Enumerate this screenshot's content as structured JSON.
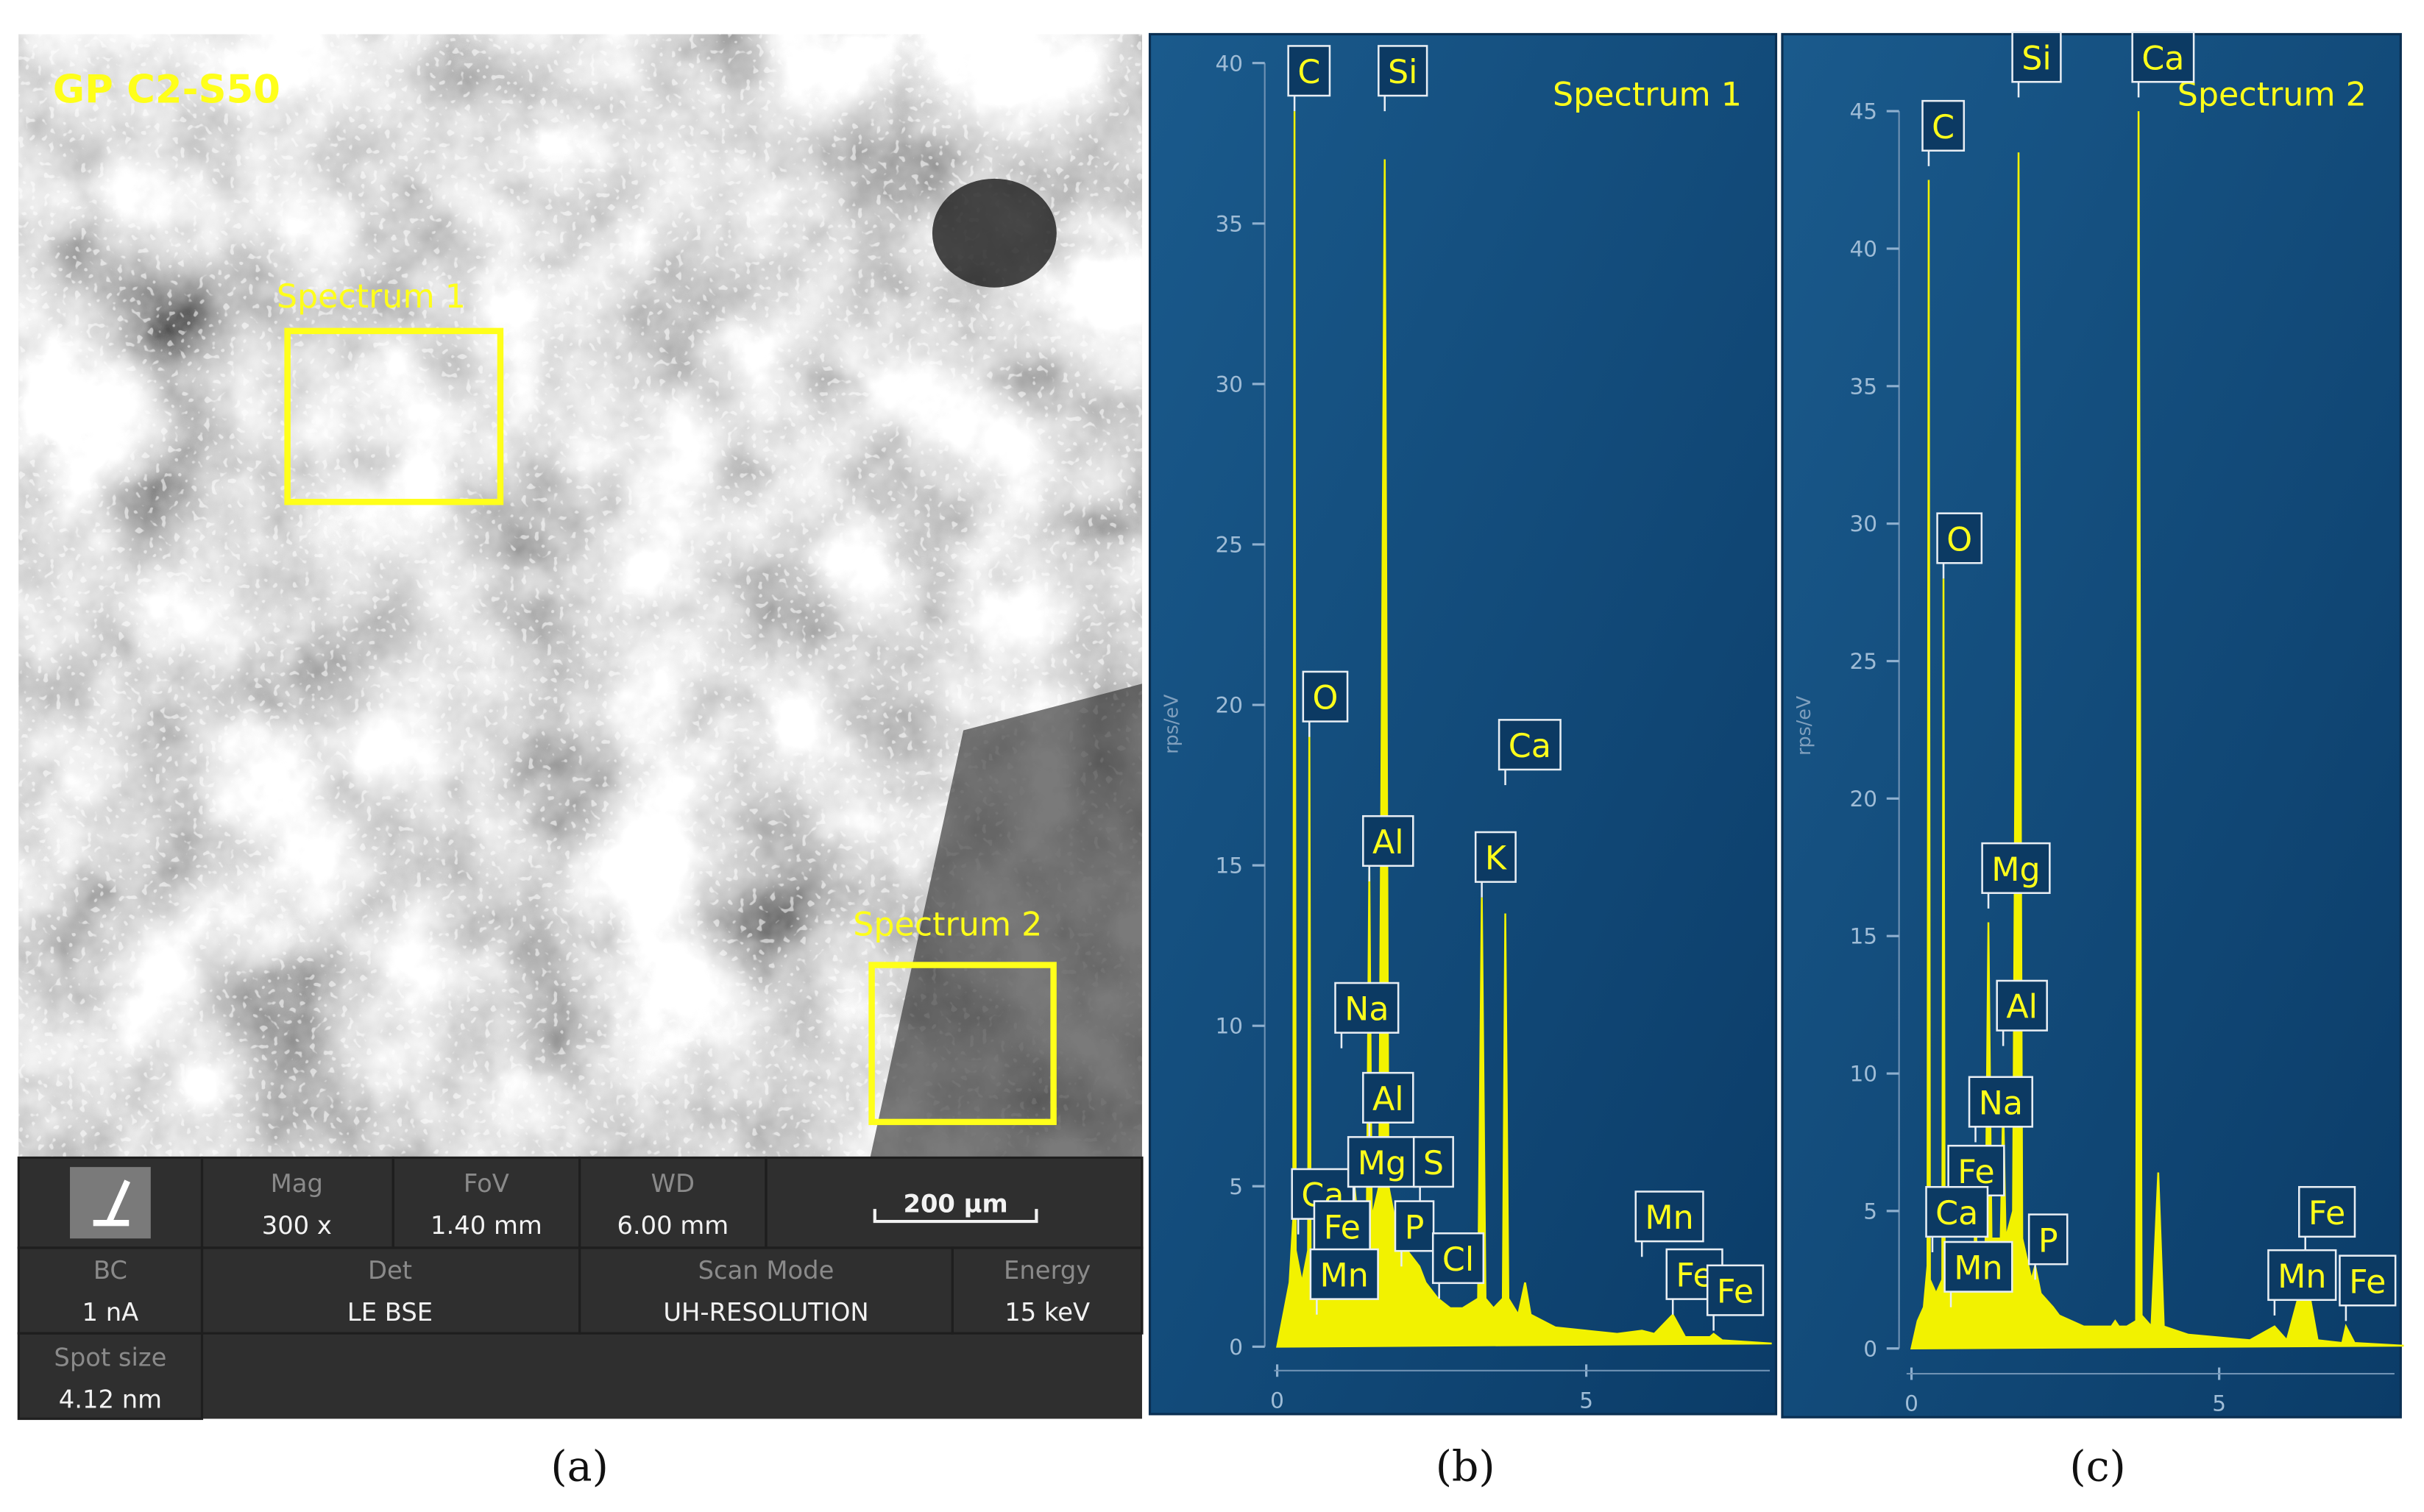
{
  "sem_panel": {
    "sample": "GP C2-S50",
    "regions": [
      "Spectrum 1",
      "Spectrum 2"
    ],
    "scale_bar": "200 µm",
    "info": [
      [
        "Mag",
        "300 x"
      ],
      [
        "FoV",
        "1.40 mm"
      ],
      [
        "WD",
        "6.00 mm"
      ],
      [
        "BC",
        "1 nA"
      ],
      [
        "Det",
        "LE BSE"
      ],
      [
        "Scan Mode",
        "UH-RESOLUTION"
      ],
      [
        "Energy",
        "15 keV"
      ],
      [
        "Spot size",
        "4.12 nm"
      ]
    ]
  },
  "panel_labels": [
    "(a)",
    "(b)",
    "(c)"
  ],
  "chart_data": [
    {
      "type": "spectrum",
      "title": "Spectrum 1",
      "y_label": "rps/eV",
      "color": "#f2f200",
      "x": [
        0,
        0.1,
        0.2,
        0.26,
        0.28,
        0.3,
        0.4,
        0.5,
        0.52,
        0.54,
        0.7,
        0.9,
        1.02,
        1.04,
        1.06,
        1.2,
        1.25,
        1.3,
        1.45,
        1.49,
        1.53,
        1.65,
        1.74,
        1.8,
        1.95,
        2.01,
        2.1,
        2.3,
        2.4,
        2.6,
        2.8,
        3.0,
        3.25,
        3.31,
        3.37,
        3.5,
        3.65,
        3.69,
        3.74,
        3.9,
        4.01,
        4.1,
        4.5,
        5.0,
        5.5,
        5.9,
        6.1,
        6.4,
        6.6,
        7.0,
        7.06,
        7.2,
        8.0
      ],
      "values": [
        0,
        1,
        2,
        4,
        38.5,
        3,
        2,
        3,
        19.5,
        3,
        2.5,
        3,
        3.5,
        5,
        3.5,
        3.5,
        5,
        4,
        4,
        15,
        4,
        5,
        37,
        5,
        3.5,
        4,
        3,
        2.5,
        2,
        1.5,
        1.2,
        1.2,
        1.5,
        14,
        1.5,
        1.2,
        1.5,
        13.5,
        1.5,
        1,
        2,
        1,
        0.6,
        0.5,
        0.4,
        0.5,
        0.4,
        1,
        0.3,
        0.3,
        0.4,
        0.2,
        0.1
      ],
      "xlim": [
        -2.06,
        8.07
      ],
      "ylim": [
        -2.1,
        40.9
      ],
      "xticks": [
        0,
        5
      ],
      "yticks": [
        0,
        5,
        10,
        15,
        20,
        25,
        30,
        35,
        40
      ],
      "annotations": [
        {
          "label": "C",
          "x": 0.28,
          "y": 38.5
        },
        {
          "label": "Si",
          "x": 1.74,
          "y": 38.5
        },
        {
          "label": "O",
          "x": 0.52,
          "y": 19
        },
        {
          "label": "Al",
          "x": 1.49,
          "y": 14.5
        },
        {
          "label": "K",
          "x": 3.31,
          "y": 14
        },
        {
          "label": "Ca",
          "x": 3.69,
          "y": 17.5
        },
        {
          "label": "Na",
          "x": 1.04,
          "y": 9.3
        },
        {
          "label": "Al",
          "x": 1.49,
          "y": 6.5
        },
        {
          "label": "Ca",
          "x": 0.34,
          "y": 3.5
        },
        {
          "label": "Mg",
          "x": 1.25,
          "y": 4.5
        },
        {
          "label": "S",
          "x": 2.31,
          "y": 4.5
        },
        {
          "label": "Fe",
          "x": 0.7,
          "y": 2.5
        },
        {
          "label": "P",
          "x": 2.01,
          "y": 2.5
        },
        {
          "label": "Cl",
          "x": 2.62,
          "y": 1.5
        },
        {
          "label": "Mn",
          "x": 0.64,
          "y": 1
        },
        {
          "label": "Mn",
          "x": 5.9,
          "y": 2.8
        },
        {
          "label": "Fe",
          "x": 6.4,
          "y": 1
        },
        {
          "label": "Fe",
          "x": 7.06,
          "y": 0.5
        }
      ]
    },
    {
      "type": "spectrum",
      "title": "Spectrum 2",
      "y_label": "rps/eV",
      "color": "#f2f200",
      "x": [
        0,
        0.1,
        0.2,
        0.26,
        0.28,
        0.3,
        0.4,
        0.5,
        0.52,
        0.54,
        0.7,
        0.9,
        1.02,
        1.04,
        1.06,
        1.2,
        1.25,
        1.3,
        1.45,
        1.49,
        1.53,
        1.65,
        1.74,
        1.8,
        1.95,
        2.01,
        2.1,
        2.3,
        2.4,
        2.6,
        2.8,
        3.0,
        3.25,
        3.31,
        3.37,
        3.5,
        3.65,
        3.69,
        3.74,
        3.9,
        4.01,
        4.1,
        4.5,
        5.0,
        5.5,
        5.9,
        6.1,
        6.4,
        6.6,
        7.0,
        7.06,
        7.2,
        8.0
      ],
      "values": [
        0,
        1,
        1.5,
        3,
        42.5,
        2.5,
        2,
        2.5,
        28,
        2.5,
        2.5,
        2,
        2.5,
        6,
        3,
        3,
        15.5,
        4,
        4,
        9,
        4,
        5,
        43.5,
        4,
        2.5,
        3,
        2,
        1.5,
        1.2,
        1,
        0.8,
        0.8,
        0.8,
        1,
        0.8,
        0.8,
        1,
        45,
        1.2,
        0.8,
        6.4,
        0.8,
        0.5,
        0.4,
        0.3,
        0.8,
        0.3,
        2.8,
        0.3,
        0.2,
        0.8,
        0.2,
        0.1
      ],
      "xlim": [
        -2.1,
        7.95
      ],
      "ylim": [
        -2.5,
        47.8
      ],
      "xticks": [
        0,
        5
      ],
      "yticks": [
        0,
        5,
        10,
        15,
        20,
        25,
        30,
        35,
        40,
        45
      ],
      "annotations": [
        {
          "label": "C",
          "x": 0.28,
          "y": 43
        },
        {
          "label": "Si",
          "x": 1.74,
          "y": 45.5
        },
        {
          "label": "Ca",
          "x": 3.69,
          "y": 45.5
        },
        {
          "label": "O",
          "x": 0.52,
          "y": 28
        },
        {
          "label": "Mg",
          "x": 1.25,
          "y": 16
        },
        {
          "label": "Al",
          "x": 1.49,
          "y": 11
        },
        {
          "label": "Na",
          "x": 1.04,
          "y": 7.5
        },
        {
          "label": "Fe",
          "x": 0.7,
          "y": 5
        },
        {
          "label": "Ca",
          "x": 0.34,
          "y": 3.5
        },
        {
          "label": "P",
          "x": 2.01,
          "y": 2.5
        },
        {
          "label": "Mn",
          "x": 0.64,
          "y": 1.5
        },
        {
          "label": "Fe",
          "x": 6.4,
          "y": 3.5
        },
        {
          "label": "Mn",
          "x": 5.9,
          "y": 1.2
        },
        {
          "label": "Fe",
          "x": 7.06,
          "y": 1
        }
      ]
    }
  ]
}
